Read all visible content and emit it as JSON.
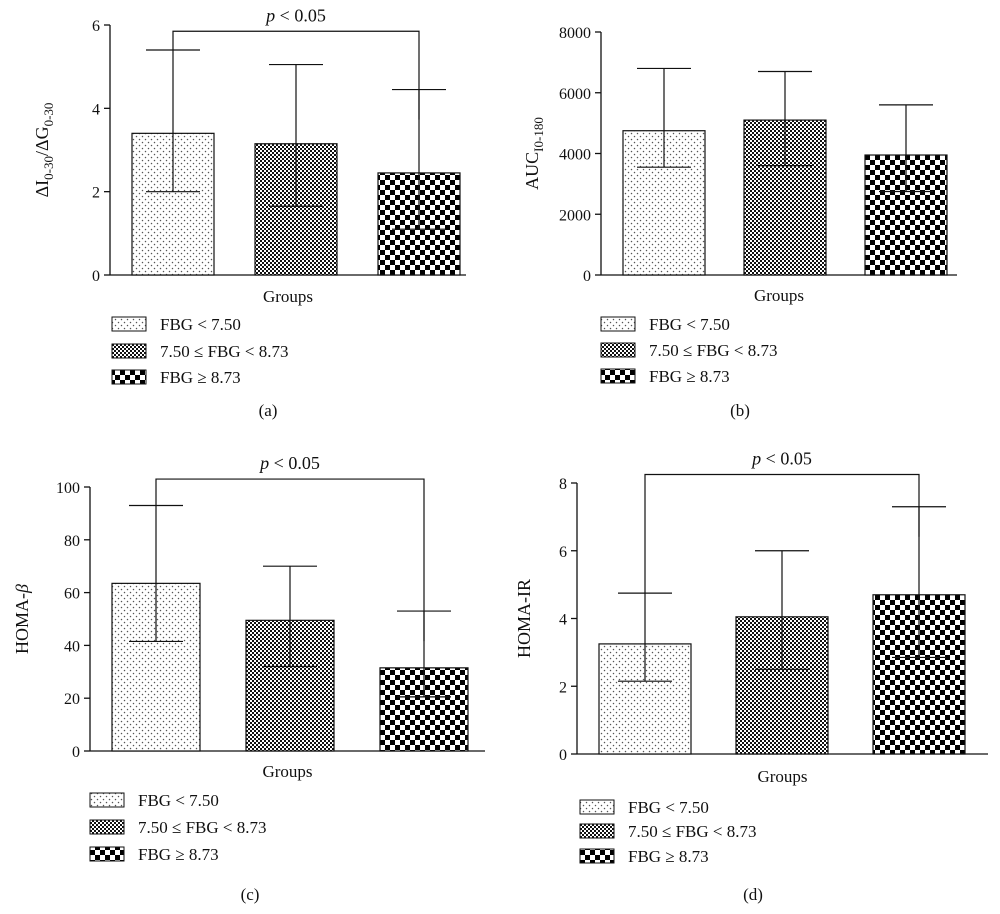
{
  "panels": [
    {
      "panel_label": "(a)",
      "chart_data": {
        "type": "bar",
        "categories": [
          "FBG < 7.50",
          "7.50 ≤ FBG < 8.73",
          "FBG ≥ 8.73"
        ],
        "series": [
          {
            "name": "ΔI0-30/ΔG0-30",
            "values": [
              3.4,
              3.15,
              2.45
            ],
            "error_low": [
              2.0,
              1.65,
              1.1
            ],
            "error_high": [
              5.4,
              5.05,
              4.45
            ]
          }
        ],
        "ylabel": "ΔI0-30/ΔG0-30",
        "ylabel_main": "ΔI",
        "ylabel_sub1": "0-30",
        "ylabel_mid": "/ΔG",
        "ylabel_sub2": "0-30",
        "xlabel": "Groups",
        "ylim": [
          0,
          6
        ],
        "yticks": [
          0,
          2,
          4,
          6
        ],
        "significance": {
          "text": "p < 0.05",
          "p": "p",
          "rest": " < 0.05",
          "from": 0,
          "to": 2,
          "y": 5.85
        },
        "legend": [
          "FBG < 7.50",
          "7.50 ≤ FBG < 8.73",
          "FBG ≥ 8.73"
        ],
        "legend_position": "bottom-left"
      }
    },
    {
      "panel_label": "(b)",
      "chart_data": {
        "type": "bar",
        "categories": [
          "FBG < 7.50",
          "7.50 ≤ FBG < 8.73",
          "FBG ≥ 8.73"
        ],
        "series": [
          {
            "name": "AUCI0-180",
            "values": [
              4750,
              5100,
              3950
            ],
            "error_low": [
              3550,
              3600,
              2750
            ],
            "error_high": [
              6800,
              6700,
              5600
            ]
          }
        ],
        "ylabel": "AUCI0-180",
        "ylabel_main": "AUC",
        "ylabel_sub1": "I0-180",
        "xlabel": "Groups",
        "ylim": [
          0,
          8000
        ],
        "yticks": [
          0,
          2000,
          4000,
          6000,
          8000
        ],
        "legend": [
          "FBG < 7.50",
          "7.50 ≤ FBG < 8.73",
          "FBG ≥ 8.73"
        ],
        "legend_position": "bottom-left"
      }
    },
    {
      "panel_label": "(c)",
      "chart_data": {
        "type": "bar",
        "categories": [
          "FBG < 7.50",
          "7.50 ≤ FBG < 8.73",
          "FBG ≥ 8.73"
        ],
        "series": [
          {
            "name": "HOMA-β",
            "values": [
              63.5,
              49.5,
              31.5
            ],
            "error_low": [
              41.5,
              32.0,
              20.5
            ],
            "error_high": [
              93.0,
              70.0,
              53.0
            ]
          }
        ],
        "ylabel": "HOMA-β",
        "ylabel_main": "HOMA-",
        "ylabel_greek": "β",
        "xlabel": "Groups",
        "ylim": [
          0,
          100
        ],
        "yticks": [
          0,
          20,
          40,
          60,
          80,
          100
        ],
        "significance": {
          "text": "p < 0.05",
          "p": "p",
          "rest": " < 0.05",
          "from": 0,
          "to": 2,
          "y": 103
        },
        "legend": [
          "FBG < 7.50",
          "7.50 ≤ FBG < 8.73",
          "FBG ≥ 8.73"
        ],
        "legend_position": "bottom-left"
      }
    },
    {
      "panel_label": "(d)",
      "chart_data": {
        "type": "bar",
        "categories": [
          "FBG < 7.50",
          "7.50 ≤ FBG < 8.73",
          "FBG ≥ 8.73"
        ],
        "series": [
          {
            "name": "HOMA-IR",
            "values": [
              3.25,
              4.05,
              4.7
            ],
            "error_low": [
              2.15,
              2.5,
              2.85
            ],
            "error_high": [
              4.75,
              6.0,
              7.3
            ]
          }
        ],
        "ylabel": "HOMA-IR",
        "ylabel_main": "HOMA-IR",
        "xlabel": "Groups",
        "ylim": [
          0,
          8
        ],
        "yticks": [
          0,
          2,
          4,
          6,
          8
        ],
        "significance": {
          "text": "p < 0.05",
          "p": "p",
          "rest": " < 0.05",
          "from": 0,
          "to": 2,
          "y": 8.25
        },
        "legend": [
          "FBG < 7.50",
          "7.50 ≤ FBG < 8.73",
          "FBG ≥ 8.73"
        ],
        "legend_position": "bottom-left"
      }
    }
  ]
}
